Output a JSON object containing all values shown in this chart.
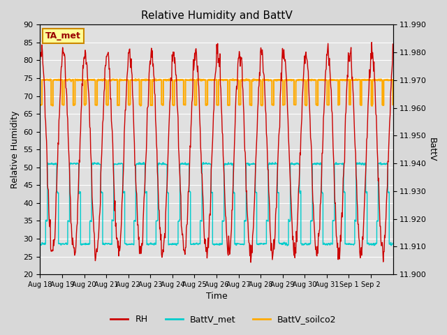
{
  "title": "Relative Humidity and BattV",
  "ylabel_left": "Relative Humidity",
  "ylabel_right": "BattV",
  "xlabel": "Time",
  "ylim_left": [
    20,
    90
  ],
  "ylim_right": [
    11.9,
    11.99
  ],
  "background_color": "#d8d8d8",
  "plot_bg_color": "#e0e0e0",
  "annotation_text": "TA_met",
  "annotation_text_color": "#990000",
  "annotation_border_color": "#cc8800",
  "annotation_bg": "#ffff99",
  "rh_color": "#cc0000",
  "battv_met_color": "#00cccc",
  "battv_soilco2_color": "#ffaa00",
  "legend_labels": [
    "RH",
    "BattV_met",
    "BattV_soilco2"
  ],
  "tick_labels_x": [
    "Aug 18",
    "Aug 19",
    "Aug 20",
    "Aug 21",
    "Aug 22",
    "Aug 23",
    "Aug 24",
    "Aug 25",
    "Aug 26",
    "Aug 27",
    "Aug 28",
    "Aug 29",
    "Aug 30",
    "Aug 31",
    "Sep 1",
    "Sep 2"
  ],
  "yticks_left": [
    20,
    25,
    30,
    35,
    40,
    45,
    50,
    55,
    60,
    65,
    70,
    75,
    80,
    85,
    90
  ],
  "yticks_right": [
    11.9,
    11.91,
    11.92,
    11.93,
    11.94,
    11.95,
    11.96,
    11.97,
    11.98,
    11.99
  ]
}
